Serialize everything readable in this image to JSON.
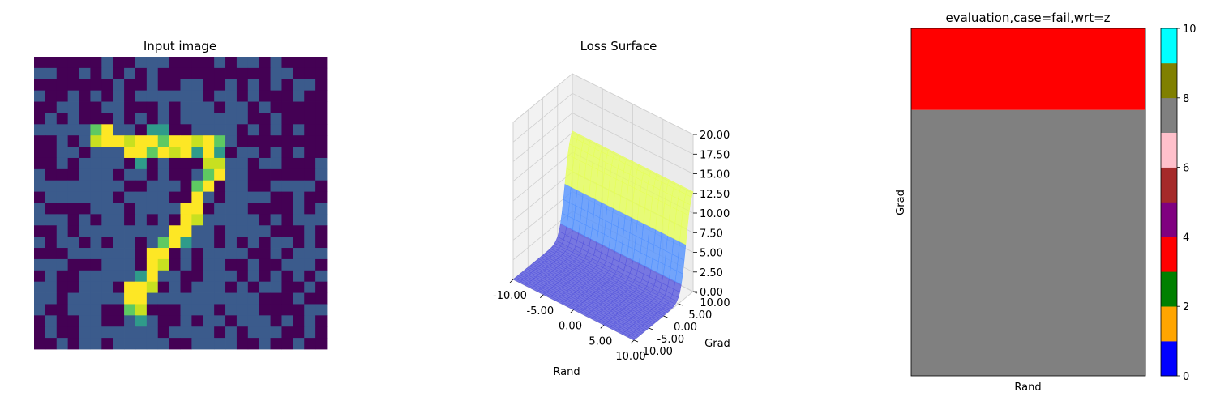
{
  "chart_data": [
    {
      "type": "heatmap",
      "title": "Input image",
      "grid_size": [
        22,
        22
      ],
      "axes_visible": false,
      "colormap": "viridis",
      "palette": {
        "dark": "#440154",
        "blue": "#3b5b8c",
        "teal": "#2f9b8a",
        "green": "#5ec962",
        "lime": "#c8e020",
        "yellow": "#fde725"
      },
      "stroke_cells": [
        [
          6,
          5,
          0.75
        ],
        [
          6,
          6,
          0.95
        ],
        [
          6,
          10,
          0.6
        ],
        [
          6,
          11,
          0.55
        ],
        [
          7,
          5,
          0.85
        ],
        [
          7,
          6,
          1.0
        ],
        [
          7,
          7,
          1.0
        ],
        [
          7,
          8,
          0.9
        ],
        [
          7,
          9,
          1.0
        ],
        [
          7,
          10,
          1.0
        ],
        [
          7,
          11,
          0.75
        ],
        [
          7,
          12,
          1.0
        ],
        [
          7,
          13,
          0.95
        ],
        [
          7,
          14,
          0.8
        ],
        [
          7,
          15,
          0.95
        ],
        [
          7,
          16,
          0.75
        ],
        [
          8,
          8,
          0.95
        ],
        [
          8,
          9,
          1.0
        ],
        [
          8,
          10,
          0.7
        ],
        [
          8,
          11,
          0.95
        ],
        [
          8,
          12,
          0.85
        ],
        [
          8,
          13,
          1.0
        ],
        [
          8,
          14,
          0.6
        ],
        [
          8,
          15,
          1.0
        ],
        [
          8,
          16,
          0.65
        ],
        [
          9,
          9,
          0.6
        ],
        [
          9,
          15,
          0.9
        ],
        [
          9,
          16,
          0.9
        ],
        [
          10,
          15,
          0.75
        ],
        [
          10,
          16,
          0.95
        ],
        [
          11,
          14,
          0.7
        ],
        [
          11,
          15,
          1.0
        ],
        [
          12,
          14,
          1.0
        ],
        [
          13,
          13,
          1.0
        ],
        [
          13,
          14,
          1.0
        ],
        [
          14,
          13,
          0.95
        ],
        [
          14,
          14,
          0.9
        ],
        [
          15,
          12,
          1.0
        ],
        [
          15,
          13,
          1.0
        ],
        [
          16,
          11,
          0.7
        ],
        [
          16,
          12,
          1.0
        ],
        [
          16,
          13,
          0.65
        ],
        [
          17,
          10,
          0.95
        ],
        [
          17,
          11,
          1.0
        ],
        [
          18,
          10,
          0.95
        ],
        [
          18,
          11,
          0.9
        ],
        [
          19,
          9,
          0.65
        ],
        [
          19,
          10,
          1.0
        ],
        [
          20,
          8,
          1.0
        ],
        [
          20,
          9,
          1.0
        ],
        [
          20,
          10,
          0.9
        ],
        [
          21,
          8,
          1.0
        ],
        [
          21,
          9,
          1.0
        ],
        [
          22,
          8,
          0.75
        ],
        [
          22,
          9,
          0.85
        ],
        [
          23,
          9,
          0.6
        ]
      ]
    },
    {
      "type": "surface3d",
      "title": "Loss Surface",
      "xlabel": "Rand",
      "ylabel": "Grad",
      "xlim": [
        -10,
        10
      ],
      "ylim": [
        -10,
        10
      ],
      "zlim": [
        0,
        20
      ],
      "x_ticks": [
        "-10.00",
        "-5.00",
        "0.00",
        "5.00",
        "10.00"
      ],
      "y_ticks": [
        "-10.00",
        "-5.00",
        "0.00",
        "5.00",
        "10.00"
      ],
      "z_ticks": [
        "0.00",
        "2.50",
        "5.00",
        "7.50",
        "10.00",
        "12.50",
        "15.00",
        "17.50",
        "20.00"
      ],
      "bands": [
        {
          "z_from": 0,
          "z_to": 2.5,
          "color": "#5555dd"
        },
        {
          "z_from": 2.5,
          "z_to": 7.5,
          "color": "#4f8fff"
        },
        {
          "z_from": 7.5,
          "z_to": 12.5,
          "color": "#e6ff55"
        },
        {
          "z_from": 12.5,
          "z_to": 20,
          "color": "#a44f4f"
        }
      ]
    },
    {
      "type": "heatmap",
      "title": "evaluation,case=fail,wrt=z",
      "xlabel": "Rand",
      "ylabel": "Grad",
      "regions": [
        {
          "y_from": 0,
          "y_to": 0.235,
          "value": 4,
          "color": "#ff0000"
        },
        {
          "y_from": 0.235,
          "y_to": 1,
          "value": 8,
          "color": "#808080"
        }
      ],
      "colorbar": {
        "range": [
          0,
          10
        ],
        "ticks": [
          "0",
          "2",
          "4",
          "6",
          "8",
          "10"
        ],
        "colors": [
          "#0000ff",
          "#ffa500",
          "#008000",
          "#ff0000",
          "#800080",
          "#a52a2a",
          "#ffc0cb",
          "#808080",
          "#808000",
          "#00ffff"
        ]
      }
    }
  ]
}
